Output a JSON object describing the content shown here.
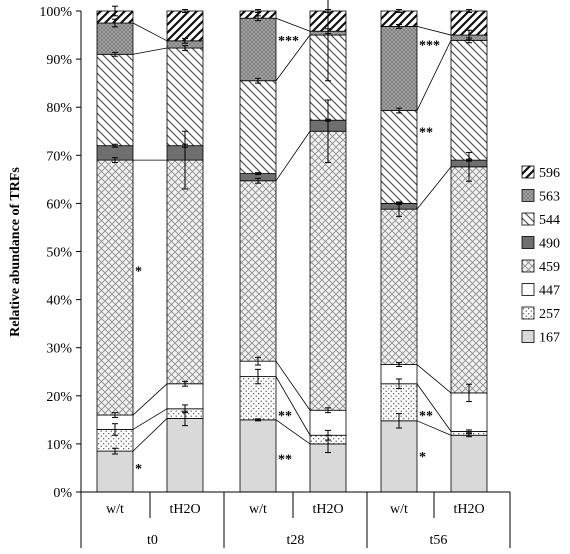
{
  "chart_data": {
    "type": "bar",
    "stacked": true,
    "percent": true,
    "ylabel": "Relative abundance  of TRFs",
    "ylim": [
      0,
      100
    ],
    "yticks": [
      "0%",
      "10%",
      "20%",
      "30%",
      "40%",
      "50%",
      "60%",
      "70%",
      "80%",
      "90%",
      "100%"
    ],
    "groups": [
      "t0",
      "t28",
      "t56"
    ],
    "categories": [
      "w/t",
      "tH2O",
      "w/t",
      "tH2O",
      "w/t",
      "tH2O"
    ],
    "legend_position": "right",
    "series": [
      {
        "name": "167",
        "pattern": "light-grey",
        "values": [
          8.5,
          15.3,
          15.0,
          10.0,
          14.8,
          11.8
        ],
        "errors": [
          0.6,
          1.5,
          0.2,
          1.8,
          1.5,
          0.3
        ]
      },
      {
        "name": "257",
        "pattern": "dots",
        "values": [
          4.5,
          2.0,
          9.0,
          1.8,
          7.7,
          0.8
        ],
        "errors": [
          1.2,
          0.8,
          1.5,
          1.0,
          1.0,
          0.3
        ]
      },
      {
        "name": "447",
        "pattern": "white",
        "values": [
          3.0,
          5.2,
          3.2,
          5.2,
          4.0,
          8.0
        ],
        "errors": [
          0.5,
          0.5,
          0.8,
          0.5,
          0.4,
          1.8
        ]
      },
      {
        "name": "459",
        "pattern": "crosshatch",
        "values": [
          53.0,
          46.5,
          37.5,
          58.0,
          32.3,
          47.0
        ],
        "errors": [
          0.5,
          6.0,
          0.5,
          6.5,
          1.5,
          3.0
        ]
      },
      {
        "name": "490",
        "pattern": "dark-grey",
        "values": [
          3.0,
          3.0,
          1.5,
          2.3,
          1.2,
          1.4
        ],
        "errors": [
          0.3,
          0.3,
          0.2,
          0.2,
          0.2,
          0.2
        ]
      },
      {
        "name": "544",
        "pattern": "diag-back",
        "values": [
          19.0,
          20.3,
          19.3,
          17.7,
          19.3,
          24.9
        ],
        "errors": [
          0.4,
          0.5,
          0.5,
          9.5,
          0.5,
          0.5
        ]
      },
      {
        "name": "563",
        "pattern": "mesh",
        "values": [
          6.5,
          1.5,
          13.0,
          0.8,
          17.5,
          1.1
        ],
        "errors": [
          0.8,
          0.5,
          0.5,
          0.5,
          0.4,
          1.0
        ]
      },
      {
        "name": "596",
        "pattern": "diag-fwd",
        "values": [
          2.5,
          6.2,
          1.5,
          4.2,
          3.2,
          5.0
        ],
        "errors": [
          1.0,
          0.3,
          0.3,
          0.3,
          0.3,
          0.3
        ]
      }
    ],
    "connectors": [
      {
        "pair": [
          0,
          1
        ],
        "series_indices": [
          0,
          1,
          2,
          3,
          5,
          6
        ]
      },
      {
        "pair": [
          2,
          3
        ],
        "series_indices": [
          0,
          1,
          2,
          3,
          5,
          6
        ]
      },
      {
        "pair": [
          4,
          5
        ],
        "series_indices": [
          0,
          1,
          2,
          3,
          5,
          6
        ]
      }
    ],
    "annotations": [
      {
        "text": "*",
        "pair": 0,
        "at": 5
      },
      {
        "text": "*",
        "pair": 0,
        "at": 46
      },
      {
        "text": "**",
        "pair": 1,
        "at": 7
      },
      {
        "text": "**",
        "pair": 1,
        "at": 16
      },
      {
        "text": "***",
        "pair": 1,
        "at": 94
      },
      {
        "text": "*",
        "pair": 2,
        "at": 7.5
      },
      {
        "text": "**",
        "pair": 2,
        "at": 16
      },
      {
        "text": "**",
        "pair": 2,
        "at": 75
      },
      {
        "text": "***",
        "pair": 2,
        "at": 93
      }
    ]
  }
}
